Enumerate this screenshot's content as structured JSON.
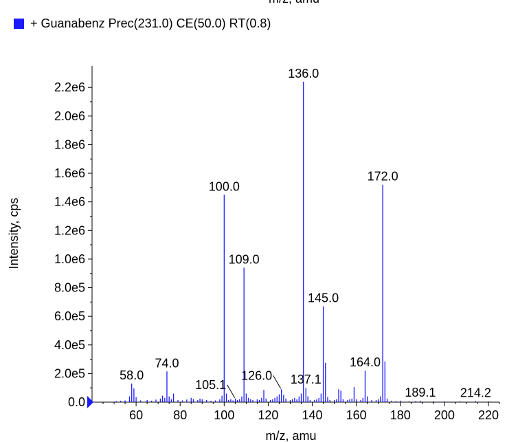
{
  "chart_data": {
    "type": "bar",
    "top_label": "m/z, amu",
    "legend": {
      "entries": [
        {
          "label": "+ Guanabenz Prec(231.0) CE(50.0) RT(0.8)",
          "color": "#1a1aff"
        }
      ]
    },
    "xlabel": "m/z, amu",
    "ylabel": "Intensity, cps",
    "xlim": [
      40,
      225
    ],
    "ylim": [
      0,
      2350000
    ],
    "xticks": [
      60,
      80,
      100,
      120,
      140,
      160,
      180,
      200,
      220
    ],
    "yticks": [
      0,
      200000,
      400000,
      600000,
      800000,
      1000000,
      1200000,
      1400000,
      1600000,
      1800000,
      2000000,
      2200000
    ],
    "ytick_labels": [
      "0.0",
      "2.0e5",
      "4.0e5",
      "6.0e5",
      "8.0e5",
      "1.0e6",
      "1.2e6",
      "1.4e6",
      "1.6e6",
      "1.8e6",
      "2.0e6",
      "2.2e6"
    ],
    "series_color": "#1a1aff",
    "peaks": [
      {
        "x": 51,
        "y": 8000
      },
      {
        "x": 53,
        "y": 10000
      },
      {
        "x": 55,
        "y": 12000
      },
      {
        "x": 57,
        "y": 40000
      },
      {
        "x": 58.0,
        "y": 130000
      },
      {
        "x": 59,
        "y": 95000
      },
      {
        "x": 60,
        "y": 35000
      },
      {
        "x": 62,
        "y": 12000
      },
      {
        "x": 65,
        "y": 15000
      },
      {
        "x": 67,
        "y": 10000
      },
      {
        "x": 69,
        "y": 18000
      },
      {
        "x": 71,
        "y": 25000
      },
      {
        "x": 72,
        "y": 45000
      },
      {
        "x": 73,
        "y": 30000
      },
      {
        "x": 74.0,
        "y": 215000
      },
      {
        "x": 75,
        "y": 40000
      },
      {
        "x": 76,
        "y": 20000
      },
      {
        "x": 77,
        "y": 60000
      },
      {
        "x": 79,
        "y": 15000
      },
      {
        "x": 81,
        "y": 12000
      },
      {
        "x": 83,
        "y": 18000
      },
      {
        "x": 85,
        "y": 30000
      },
      {
        "x": 86,
        "y": 22000
      },
      {
        "x": 88,
        "y": 15000
      },
      {
        "x": 89,
        "y": 25000
      },
      {
        "x": 90,
        "y": 20000
      },
      {
        "x": 92,
        "y": 15000
      },
      {
        "x": 94,
        "y": 10000
      },
      {
        "x": 96,
        "y": 12000
      },
      {
        "x": 98,
        "y": 20000
      },
      {
        "x": 99,
        "y": 45000
      },
      {
        "x": 100.0,
        "y": 1450000
      },
      {
        "x": 101,
        "y": 60000
      },
      {
        "x": 102,
        "y": 15000
      },
      {
        "x": 103,
        "y": 20000
      },
      {
        "x": 104,
        "y": 12000
      },
      {
        "x": 105.1,
        "y": 25000
      },
      {
        "x": 106,
        "y": 15000
      },
      {
        "x": 107,
        "y": 20000
      },
      {
        "x": 108,
        "y": 40000
      },
      {
        "x": 109.0,
        "y": 940000
      },
      {
        "x": 110,
        "y": 60000
      },
      {
        "x": 111,
        "y": 30000
      },
      {
        "x": 112,
        "y": 20000
      },
      {
        "x": 113,
        "y": 15000
      },
      {
        "x": 115,
        "y": 20000
      },
      {
        "x": 116,
        "y": 15000
      },
      {
        "x": 117,
        "y": 30000
      },
      {
        "x": 118,
        "y": 85000
      },
      {
        "x": 119,
        "y": 25000
      },
      {
        "x": 121,
        "y": 15000
      },
      {
        "x": 122,
        "y": 20000
      },
      {
        "x": 123,
        "y": 30000
      },
      {
        "x": 124,
        "y": 40000
      },
      {
        "x": 125,
        "y": 55000
      },
      {
        "x": 126.0,
        "y": 90000
      },
      {
        "x": 127,
        "y": 50000
      },
      {
        "x": 128,
        "y": 25000
      },
      {
        "x": 130,
        "y": 15000
      },
      {
        "x": 131,
        "y": 20000
      },
      {
        "x": 132,
        "y": 30000
      },
      {
        "x": 133,
        "y": 20000
      },
      {
        "x": 134,
        "y": 40000
      },
      {
        "x": 135,
        "y": 60000
      },
      {
        "x": 136.0,
        "y": 2240000
      },
      {
        "x": 137.1,
        "y": 100000
      },
      {
        "x": 138,
        "y": 40000
      },
      {
        "x": 139,
        "y": 15000
      },
      {
        "x": 141,
        "y": 15000
      },
      {
        "x": 142,
        "y": 20000
      },
      {
        "x": 143,
        "y": 30000
      },
      {
        "x": 144,
        "y": 60000
      },
      {
        "x": 145.0,
        "y": 670000
      },
      {
        "x": 146,
        "y": 275000
      },
      {
        "x": 147,
        "y": 35000
      },
      {
        "x": 148,
        "y": 15000
      },
      {
        "x": 150,
        "y": 15000
      },
      {
        "x": 151,
        "y": 20000
      },
      {
        "x": 152,
        "y": 90000
      },
      {
        "x": 153,
        "y": 80000
      },
      {
        "x": 154,
        "y": 20000
      },
      {
        "x": 156,
        "y": 15000
      },
      {
        "x": 157,
        "y": 20000
      },
      {
        "x": 158,
        "y": 25000
      },
      {
        "x": 159,
        "y": 105000
      },
      {
        "x": 160,
        "y": 20000
      },
      {
        "x": 162,
        "y": 15000
      },
      {
        "x": 163,
        "y": 30000
      },
      {
        "x": 164.0,
        "y": 220000
      },
      {
        "x": 165,
        "y": 40000
      },
      {
        "x": 167,
        "y": 15000
      },
      {
        "x": 169,
        "y": 15000
      },
      {
        "x": 170,
        "y": 20000
      },
      {
        "x": 171,
        "y": 40000
      },
      {
        "x": 172.0,
        "y": 1520000
      },
      {
        "x": 173,
        "y": 285000
      },
      {
        "x": 174,
        "y": 25000
      },
      {
        "x": 176,
        "y": 10000
      },
      {
        "x": 178,
        "y": 8000
      },
      {
        "x": 180,
        "y": 10000
      },
      {
        "x": 184,
        "y": 6000
      },
      {
        "x": 187,
        "y": 8000
      },
      {
        "x": 189.1,
        "y": 10000
      },
      {
        "x": 195,
        "y": 6000
      },
      {
        "x": 200,
        "y": 5000
      },
      {
        "x": 207,
        "y": 6000
      },
      {
        "x": 214.2,
        "y": 8000
      },
      {
        "x": 220,
        "y": 5000
      }
    ],
    "annotations": [
      {
        "text": "58.0",
        "x": 58.0,
        "y": 130000
      },
      {
        "text": "74.0",
        "x": 74.0,
        "y": 215000
      },
      {
        "text": "100.0",
        "x": 100.0,
        "y": 1450000
      },
      {
        "text": "105.1",
        "x": 105.1,
        "y": 25000,
        "leader": true
      },
      {
        "text": "109.0",
        "x": 109.0,
        "y": 940000
      },
      {
        "text": "126.0",
        "x": 126.0,
        "y": 90000,
        "leader": true
      },
      {
        "text": "136.0",
        "x": 136.0,
        "y": 2240000
      },
      {
        "text": "137.1",
        "x": 137.1,
        "y": 100000
      },
      {
        "text": "145.0",
        "x": 145.0,
        "y": 670000
      },
      {
        "text": "164.0",
        "x": 164.0,
        "y": 220000
      },
      {
        "text": "172.0",
        "x": 172.0,
        "y": 1520000
      },
      {
        "text": "189.1",
        "x": 189.1,
        "y": 10000
      },
      {
        "text": "214.2",
        "x": 214.2,
        "y": 8000
      }
    ]
  }
}
